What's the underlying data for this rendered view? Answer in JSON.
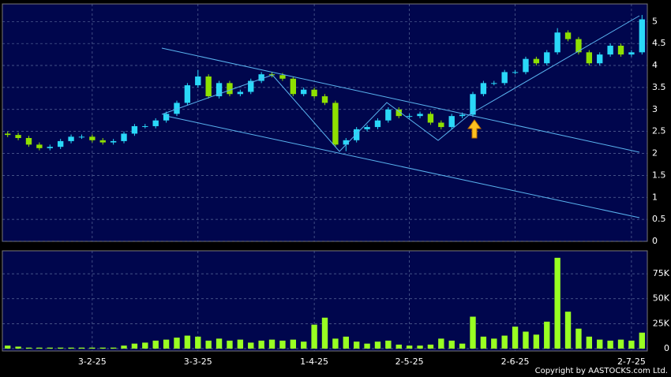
{
  "chart_data": {
    "type": "candlestick",
    "credit": "Copyright by AASTOCKS.com Ltd.",
    "xlim": [
      -0.5,
      60.5
    ],
    "xticks": [
      {
        "value": 8,
        "label": "3-2-25"
      },
      {
        "value": 18,
        "label": "3-3-25"
      },
      {
        "value": 29,
        "label": "1-4-25"
      },
      {
        "value": 38,
        "label": "2-5-25"
      },
      {
        "value": 48,
        "label": "2-6-25"
      },
      {
        "value": 59,
        "label": "2-7-25"
      }
    ],
    "ylim": [
      0,
      5.4
    ],
    "yticks": [
      0,
      0.5,
      1,
      1.5,
      2,
      2.5,
      3,
      3.5,
      4,
      4.5,
      5
    ],
    "up_color": "#2ad8f8",
    "down_color": "#8fe000",
    "volume_color": "#99ff22",
    "grid": true,
    "open": [
      2.45,
      2.42,
      2.35,
      2.2,
      2.12,
      2.15,
      2.28,
      2.38,
      2.38,
      2.3,
      2.25,
      2.28,
      2.45,
      2.62,
      2.62,
      2.75,
      2.9,
      3.15,
      3.55,
      3.75,
      3.3,
      3.6,
      3.35,
      3.4,
      3.65,
      3.8,
      3.78,
      3.7,
      3.35,
      3.45,
      3.3,
      3.15,
      2.2,
      2.3,
      2.55,
      2.6,
      2.75,
      3.0,
      2.85,
      2.85,
      2.9,
      2.7,
      2.6,
      2.85,
      2.88,
      3.35,
      3.6,
      3.6,
      3.85,
      3.85,
      4.15,
      4.05,
      4.3,
      4.75,
      4.6,
      4.3,
      4.05,
      4.25,
      4.45,
      4.25,
      4.3
    ],
    "high": [
      2.5,
      2.47,
      2.4,
      2.25,
      2.2,
      2.33,
      2.43,
      2.43,
      2.43,
      2.35,
      2.33,
      2.5,
      2.67,
      2.67,
      2.8,
      2.95,
      3.2,
      3.6,
      3.9,
      3.8,
      3.65,
      3.65,
      3.45,
      3.7,
      3.85,
      3.85,
      3.83,
      3.75,
      3.5,
      3.5,
      3.35,
      3.2,
      2.35,
      2.6,
      2.65,
      2.8,
      3.05,
      3.05,
      2.9,
      2.95,
      2.95,
      2.75,
      2.9,
      2.93,
      3.4,
      3.65,
      3.65,
      3.9,
      3.9,
      4.2,
      4.2,
      4.35,
      4.85,
      4.8,
      4.65,
      4.35,
      4.3,
      4.5,
      4.5,
      4.35,
      5.15
    ],
    "low": [
      2.37,
      2.3,
      2.15,
      2.07,
      2.07,
      2.1,
      2.23,
      2.33,
      2.25,
      2.2,
      2.2,
      2.23,
      2.4,
      2.57,
      2.57,
      2.7,
      2.85,
      3.1,
      3.5,
      3.25,
      3.25,
      3.3,
      3.3,
      3.35,
      3.6,
      3.73,
      3.65,
      3.3,
      3.3,
      3.25,
      3.1,
      2.15,
      2.05,
      2.25,
      2.5,
      2.55,
      2.7,
      2.8,
      2.8,
      2.8,
      2.65,
      2.55,
      2.55,
      2.8,
      2.83,
      3.3,
      3.55,
      3.55,
      3.8,
      3.8,
      4.0,
      4.0,
      4.25,
      4.55,
      4.25,
      4.0,
      4.0,
      4.2,
      4.2,
      4.2,
      4.25
    ],
    "close": [
      2.42,
      2.35,
      2.2,
      2.12,
      2.15,
      2.28,
      2.38,
      2.38,
      2.3,
      2.25,
      2.28,
      2.45,
      2.62,
      2.62,
      2.75,
      2.9,
      3.15,
      3.55,
      3.75,
      3.3,
      3.6,
      3.35,
      3.4,
      3.65,
      3.8,
      3.78,
      3.7,
      3.35,
      3.45,
      3.3,
      3.15,
      2.2,
      2.3,
      2.55,
      2.6,
      2.75,
      3.0,
      2.85,
      2.85,
      2.9,
      2.7,
      2.6,
      2.85,
      2.88,
      3.35,
      3.6,
      3.6,
      3.85,
      3.85,
      4.15,
      4.05,
      4.3,
      4.75,
      4.6,
      4.3,
      4.05,
      4.25,
      4.45,
      4.25,
      4.3,
      5.05
    ],
    "volume": [
      3000,
      2000,
      1000,
      1000,
      1000,
      1000,
      1000,
      1000,
      1000,
      1000,
      1000,
      3000,
      5000,
      6000,
      8000,
      9000,
      11000,
      13000,
      12000,
      8000,
      10000,
      8000,
      9000,
      6000,
      8000,
      9000,
      8000,
      9000,
      7000,
      24000,
      31000,
      10000,
      12000,
      7000,
      5000,
      7000,
      8000,
      4000,
      3000,
      3000,
      4000,
      10000,
      8000,
      5000,
      32000,
      12000,
      10000,
      13000,
      22000,
      17000,
      14000,
      27000,
      91000,
      37000,
      20000,
      12000,
      9000,
      8000,
      9000,
      8000,
      16000
    ],
    "volume_ylim": [
      0,
      98000
    ],
    "volume_yticks": [
      0,
      {
        "value": 25000,
        "label": "25K"
      },
      {
        "value": 50000,
        "label": "50K"
      },
      {
        "value": 75000,
        "label": "75K"
      }
    ]
  }
}
